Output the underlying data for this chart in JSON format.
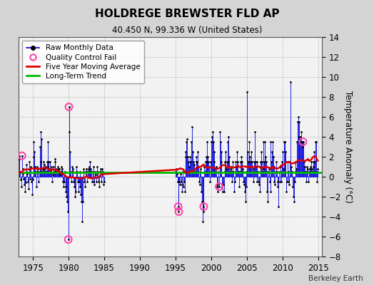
{
  "title": "HOLDREGE BREWSTER FLD AP",
  "subtitle": "40.450 N, 99.336 W (United States)",
  "ylabel": "Temperature Anomaly (°C)",
  "credit": "Berkeley Earth",
  "xlim": [
    1973,
    2015.5
  ],
  "ylim": [
    -8,
    14
  ],
  "yticks": [
    -8,
    -6,
    -4,
    -2,
    0,
    2,
    4,
    6,
    8,
    10,
    12,
    14
  ],
  "xticks": [
    1975,
    1980,
    1985,
    1990,
    1995,
    2000,
    2005,
    2010,
    2015
  ],
  "fig_bg": "#d4d4d4",
  "plot_bg": "#f2f2f2",
  "line_color": "#0000dd",
  "dot_color": "#000000",
  "ma_color": "#dd0000",
  "trend_color": "#00bb00",
  "qc_color": "#ff44aa",
  "long_term_trend_value": 0.45,
  "raw_data": [
    [
      1973.042,
      2.1
    ],
    [
      1973.125,
      1.8
    ],
    [
      1973.208,
      0.5
    ],
    [
      1973.292,
      -0.3
    ],
    [
      1973.375,
      -1.0
    ],
    [
      1973.458,
      2.1
    ],
    [
      1973.542,
      0.8
    ],
    [
      1973.625,
      0.3
    ],
    [
      1973.708,
      -0.2
    ],
    [
      1973.792,
      -0.8
    ],
    [
      1973.875,
      -1.5
    ],
    [
      1973.958,
      -0.6
    ],
    [
      1974.042,
      0.5
    ],
    [
      1974.125,
      1.2
    ],
    [
      1974.208,
      0.3
    ],
    [
      1974.292,
      -0.5
    ],
    [
      1974.375,
      -1.2
    ],
    [
      1974.458,
      1.5
    ],
    [
      1974.542,
      0.8
    ],
    [
      1974.625,
      -0.2
    ],
    [
      1974.708,
      1.0
    ],
    [
      1974.792,
      -0.5
    ],
    [
      1974.875,
      -1.8
    ],
    [
      1974.958,
      -0.3
    ],
    [
      1975.042,
      2.0
    ],
    [
      1975.125,
      3.5
    ],
    [
      1975.208,
      2.5
    ],
    [
      1975.292,
      1.0
    ],
    [
      1975.375,
      0.5
    ],
    [
      1975.458,
      -1.0
    ],
    [
      1975.542,
      0.5
    ],
    [
      1975.625,
      1.0
    ],
    [
      1975.708,
      0.8
    ],
    [
      1975.792,
      -0.5
    ],
    [
      1975.875,
      0.5
    ],
    [
      1975.958,
      3.0
    ],
    [
      1976.042,
      1.5
    ],
    [
      1976.125,
      4.5
    ],
    [
      1976.208,
      3.8
    ],
    [
      1976.292,
      0.5
    ],
    [
      1976.375,
      0.8
    ],
    [
      1976.458,
      1.5
    ],
    [
      1976.542,
      1.2
    ],
    [
      1976.625,
      0.8
    ],
    [
      1976.708,
      0.5
    ],
    [
      1976.792,
      1.0
    ],
    [
      1976.875,
      0.5
    ],
    [
      1976.958,
      1.5
    ],
    [
      1977.042,
      1.0
    ],
    [
      1977.125,
      3.5
    ],
    [
      1977.208,
      1.5
    ],
    [
      1977.292,
      0.8
    ],
    [
      1977.375,
      1.5
    ],
    [
      1977.458,
      0.5
    ],
    [
      1977.542,
      1.0
    ],
    [
      1977.625,
      0.8
    ],
    [
      1977.708,
      -0.5
    ],
    [
      1977.792,
      0.2
    ],
    [
      1977.875,
      1.0
    ],
    [
      1977.958,
      0.5
    ],
    [
      1978.042,
      1.8
    ],
    [
      1978.125,
      1.5
    ],
    [
      1978.208,
      0.5
    ],
    [
      1978.292,
      0.8
    ],
    [
      1978.375,
      0.5
    ],
    [
      1978.458,
      1.0
    ],
    [
      1978.542,
      0.8
    ],
    [
      1978.625,
      0.5
    ],
    [
      1978.708,
      0.8
    ],
    [
      1978.792,
      0.2
    ],
    [
      1978.875,
      0.5
    ],
    [
      1978.958,
      1.0
    ],
    [
      1979.042,
      0.5
    ],
    [
      1979.125,
      0.8
    ],
    [
      1979.208,
      -0.5
    ],
    [
      1979.292,
      -1.0
    ],
    [
      1979.375,
      -0.5
    ],
    [
      1979.458,
      0.5
    ],
    [
      1979.542,
      -1.0
    ],
    [
      1979.625,
      -1.5
    ],
    [
      1979.708,
      -2.0
    ],
    [
      1979.792,
      -2.5
    ],
    [
      1979.875,
      -3.5
    ],
    [
      1979.958,
      -6.3
    ],
    [
      1980.042,
      7.0
    ],
    [
      1980.125,
      4.5
    ],
    [
      1980.208,
      2.5
    ],
    [
      1980.292,
      0.5
    ],
    [
      1980.375,
      -0.5
    ],
    [
      1980.458,
      1.0
    ],
    [
      1980.542,
      0.5
    ],
    [
      1980.625,
      0.8
    ],
    [
      1980.708,
      -0.5
    ],
    [
      1980.792,
      -1.0
    ],
    [
      1980.875,
      -2.0
    ],
    [
      1980.958,
      -1.5
    ],
    [
      1981.042,
      0.5
    ],
    [
      1981.125,
      1.0
    ],
    [
      1981.208,
      0.5
    ],
    [
      1981.292,
      -0.5
    ],
    [
      1981.375,
      -1.5
    ],
    [
      1981.458,
      -0.5
    ],
    [
      1981.542,
      0.5
    ],
    [
      1981.625,
      -1.0
    ],
    [
      1981.708,
      -1.8
    ],
    [
      1981.792,
      -2.5
    ],
    [
      1981.875,
      -4.5
    ],
    [
      1981.958,
      -2.5
    ],
    [
      1982.042,
      0.5
    ],
    [
      1982.125,
      0.8
    ],
    [
      1982.208,
      -0.5
    ],
    [
      1982.292,
      -1.0
    ],
    [
      1982.375,
      0.5
    ],
    [
      1982.458,
      0.8
    ],
    [
      1982.542,
      0.5
    ],
    [
      1982.625,
      -0.5
    ],
    [
      1982.708,
      0.5
    ],
    [
      1982.792,
      0.8
    ],
    [
      1982.875,
      1.0
    ],
    [
      1982.958,
      0.5
    ],
    [
      1983.042,
      1.5
    ],
    [
      1983.125,
      0.8
    ],
    [
      1983.208,
      0.5
    ],
    [
      1983.292,
      -0.5
    ],
    [
      1983.375,
      0.5
    ],
    [
      1983.458,
      1.0
    ],
    [
      1983.542,
      -0.5
    ],
    [
      1983.625,
      -0.8
    ],
    [
      1983.708,
      0.5
    ],
    [
      1983.792,
      0.2
    ],
    [
      1983.875,
      -0.5
    ],
    [
      1983.958,
      0.5
    ],
    [
      1984.042,
      1.0
    ],
    [
      1984.125,
      0.5
    ],
    [
      1984.208,
      -0.5
    ],
    [
      1984.292,
      -1.0
    ],
    [
      1984.375,
      0.5
    ],
    [
      1984.458,
      0.8
    ],
    [
      1984.542,
      0.5
    ],
    [
      1984.625,
      -0.5
    ],
    [
      1984.708,
      0.8
    ],
    [
      1984.792,
      0.5
    ],
    [
      1984.875,
      -0.8
    ],
    [
      1984.958,
      -0.5
    ],
    [
      1995.042,
      0.5
    ],
    [
      1995.125,
      0.8
    ],
    [
      1995.208,
      0.3
    ],
    [
      1995.292,
      -0.5
    ],
    [
      1995.375,
      -3.0
    ],
    [
      1995.458,
      -3.5
    ],
    [
      1995.542,
      -0.5
    ],
    [
      1995.625,
      -0.8
    ],
    [
      1995.708,
      0.3
    ],
    [
      1995.792,
      -0.5
    ],
    [
      1995.875,
      -0.8
    ],
    [
      1995.958,
      -1.5
    ],
    [
      1996.042,
      0.5
    ],
    [
      1996.125,
      -1.0
    ],
    [
      1996.208,
      -0.5
    ],
    [
      1996.292,
      -1.5
    ],
    [
      1996.375,
      2.5
    ],
    [
      1996.458,
      2.0
    ],
    [
      1996.542,
      3.5
    ],
    [
      1996.625,
      3.8
    ],
    [
      1996.708,
      2.0
    ],
    [
      1996.792,
      1.5
    ],
    [
      1996.875,
      1.0
    ],
    [
      1996.958,
      0.5
    ],
    [
      1997.042,
      2.0
    ],
    [
      1997.125,
      1.5
    ],
    [
      1997.208,
      3.5
    ],
    [
      1997.292,
      5.0
    ],
    [
      1997.375,
      2.5
    ],
    [
      1997.458,
      0.5
    ],
    [
      1997.542,
      1.5
    ],
    [
      1997.625,
      1.2
    ],
    [
      1997.708,
      0.8
    ],
    [
      1997.792,
      0.5
    ],
    [
      1997.875,
      1.5
    ],
    [
      1997.958,
      2.0
    ],
    [
      1998.042,
      1.5
    ],
    [
      1998.125,
      2.5
    ],
    [
      1998.208,
      1.0
    ],
    [
      1998.292,
      -0.5
    ],
    [
      1998.375,
      -0.8
    ],
    [
      1998.458,
      0.5
    ],
    [
      1998.542,
      0.8
    ],
    [
      1998.625,
      -1.5
    ],
    [
      1998.708,
      -2.5
    ],
    [
      1998.792,
      -4.5
    ],
    [
      1998.875,
      -3.5
    ],
    [
      1998.958,
      -3.0
    ],
    [
      1999.042,
      1.0
    ],
    [
      1999.125,
      0.5
    ],
    [
      1999.208,
      1.5
    ],
    [
      1999.292,
      2.0
    ],
    [
      1999.375,
      1.5
    ],
    [
      1999.458,
      3.5
    ],
    [
      1999.542,
      2.0
    ],
    [
      1999.625,
      1.5
    ],
    [
      1999.708,
      1.0
    ],
    [
      1999.792,
      -0.5
    ],
    [
      1999.875,
      0.5
    ],
    [
      1999.958,
      1.5
    ],
    [
      2000.042,
      3.5
    ],
    [
      2000.125,
      4.0
    ],
    [
      2000.208,
      4.5
    ],
    [
      2000.292,
      3.5
    ],
    [
      2000.375,
      2.5
    ],
    [
      2000.458,
      1.5
    ],
    [
      2000.542,
      0.8
    ],
    [
      2000.625,
      0.5
    ],
    [
      2000.708,
      1.0
    ],
    [
      2000.792,
      -1.0
    ],
    [
      2000.875,
      -0.8
    ],
    [
      2000.958,
      -1.5
    ],
    [
      2001.042,
      0.5
    ],
    [
      2001.125,
      -1.0
    ],
    [
      2001.208,
      4.5
    ],
    [
      2001.292,
      3.5
    ],
    [
      2001.375,
      2.5
    ],
    [
      2001.458,
      1.5
    ],
    [
      2001.542,
      -1.0
    ],
    [
      2001.625,
      -1.5
    ],
    [
      2001.708,
      -0.8
    ],
    [
      2001.792,
      -1.5
    ],
    [
      2001.875,
      0.5
    ],
    [
      2001.958,
      1.5
    ],
    [
      2002.042,
      2.5
    ],
    [
      2002.125,
      0.8
    ],
    [
      2002.208,
      1.5
    ],
    [
      2002.292,
      3.5
    ],
    [
      2002.375,
      4.0
    ],
    [
      2002.458,
      1.5
    ],
    [
      2002.542,
      2.0
    ],
    [
      2002.625,
      0.5
    ],
    [
      2002.708,
      0.8
    ],
    [
      2002.792,
      1.0
    ],
    [
      2002.875,
      -0.5
    ],
    [
      2002.958,
      0.5
    ],
    [
      2003.042,
      1.5
    ],
    [
      2003.125,
      0.5
    ],
    [
      2003.208,
      -1.5
    ],
    [
      2003.292,
      -0.5
    ],
    [
      2003.375,
      1.0
    ],
    [
      2003.458,
      1.5
    ],
    [
      2003.542,
      1.0
    ],
    [
      2003.625,
      2.5
    ],
    [
      2003.708,
      1.5
    ],
    [
      2003.792,
      0.5
    ],
    [
      2003.875,
      -1.0
    ],
    [
      2003.958,
      0.5
    ],
    [
      2004.042,
      0.5
    ],
    [
      2004.125,
      1.5
    ],
    [
      2004.208,
      2.0
    ],
    [
      2004.292,
      1.5
    ],
    [
      2004.375,
      0.5
    ],
    [
      2004.458,
      0.8
    ],
    [
      2004.542,
      -0.5
    ],
    [
      2004.625,
      -0.8
    ],
    [
      2004.708,
      -1.5
    ],
    [
      2004.792,
      -2.5
    ],
    [
      2004.875,
      -1.0
    ],
    [
      2004.958,
      0.5
    ],
    [
      2005.042,
      8.5
    ],
    [
      2005.125,
      2.5
    ],
    [
      2005.208,
      1.5
    ],
    [
      2005.292,
      3.5
    ],
    [
      2005.375,
      2.0
    ],
    [
      2005.458,
      1.0
    ],
    [
      2005.542,
      1.5
    ],
    [
      2005.625,
      2.5
    ],
    [
      2005.708,
      1.5
    ],
    [
      2005.792,
      0.5
    ],
    [
      2005.875,
      -0.5
    ],
    [
      2005.958,
      0.8
    ],
    [
      2006.042,
      1.5
    ],
    [
      2006.125,
      4.5
    ],
    [
      2006.208,
      1.5
    ],
    [
      2006.292,
      1.0
    ],
    [
      2006.375,
      1.5
    ],
    [
      2006.458,
      -0.5
    ],
    [
      2006.542,
      0.5
    ],
    [
      2006.625,
      -0.5
    ],
    [
      2006.708,
      -0.8
    ],
    [
      2006.792,
      -1.5
    ],
    [
      2006.875,
      0.5
    ],
    [
      2006.958,
      1.5
    ],
    [
      2007.042,
      2.5
    ],
    [
      2007.125,
      1.5
    ],
    [
      2007.208,
      0.5
    ],
    [
      2007.292,
      0.8
    ],
    [
      2007.375,
      3.5
    ],
    [
      2007.458,
      1.5
    ],
    [
      2007.542,
      3.5
    ],
    [
      2007.625,
      2.0
    ],
    [
      2007.708,
      1.5
    ],
    [
      2007.792,
      0.5
    ],
    [
      2007.875,
      -1.5
    ],
    [
      2007.958,
      -2.5
    ],
    [
      2008.042,
      0.5
    ],
    [
      2008.125,
      0.8
    ],
    [
      2008.208,
      -0.5
    ],
    [
      2008.292,
      -1.5
    ],
    [
      2008.375,
      3.5
    ],
    [
      2008.458,
      1.5
    ],
    [
      2008.542,
      2.5
    ],
    [
      2008.625,
      3.5
    ],
    [
      2008.708,
      2.0
    ],
    [
      2008.792,
      1.0
    ],
    [
      2008.875,
      -0.5
    ],
    [
      2008.958,
      -0.8
    ],
    [
      2009.042,
      0.5
    ],
    [
      2009.125,
      1.5
    ],
    [
      2009.208,
      0.5
    ],
    [
      2009.292,
      -1.0
    ],
    [
      2009.375,
      -0.5
    ],
    [
      2009.458,
      -3.0
    ],
    [
      2009.542,
      0.5
    ],
    [
      2009.625,
      -0.5
    ],
    [
      2009.708,
      1.0
    ],
    [
      2009.792,
      -0.5
    ],
    [
      2009.875,
      0.5
    ],
    [
      2009.958,
      1.5
    ],
    [
      2010.042,
      2.5
    ],
    [
      2010.125,
      0.8
    ],
    [
      2010.208,
      3.5
    ],
    [
      2010.292,
      3.5
    ],
    [
      2010.375,
      3.5
    ],
    [
      2010.458,
      2.5
    ],
    [
      2010.542,
      -1.5
    ],
    [
      2010.625,
      -0.5
    ],
    [
      2010.708,
      1.5
    ],
    [
      2010.792,
      0.5
    ],
    [
      2010.875,
      -0.5
    ],
    [
      2010.958,
      -0.8
    ],
    [
      2011.042,
      1.5
    ],
    [
      2011.125,
      9.5
    ],
    [
      2011.208,
      1.0
    ],
    [
      2011.292,
      0.5
    ],
    [
      2011.375,
      0.5
    ],
    [
      2011.458,
      -1.0
    ],
    [
      2011.542,
      -2.0
    ],
    [
      2011.625,
      -2.5
    ],
    [
      2011.708,
      -0.5
    ],
    [
      2011.792,
      0.5
    ],
    [
      2011.875,
      1.5
    ],
    [
      2011.958,
      0.8
    ],
    [
      2012.042,
      3.5
    ],
    [
      2012.125,
      5.5
    ],
    [
      2012.208,
      6.0
    ],
    [
      2012.292,
      5.5
    ],
    [
      2012.375,
      4.0
    ],
    [
      2012.458,
      3.5
    ],
    [
      2012.542,
      4.0
    ],
    [
      2012.625,
      4.5
    ],
    [
      2012.708,
      3.5
    ],
    [
      2012.792,
      3.0
    ],
    [
      2012.875,
      3.5
    ],
    [
      2012.958,
      3.5
    ],
    [
      2013.042,
      1.5
    ],
    [
      2013.125,
      1.0
    ],
    [
      2013.208,
      0.5
    ],
    [
      2013.292,
      -0.5
    ],
    [
      2013.375,
      0.5
    ],
    [
      2013.458,
      1.0
    ],
    [
      2013.542,
      0.8
    ],
    [
      2013.625,
      -0.5
    ],
    [
      2013.708,
      0.5
    ],
    [
      2013.792,
      0.8
    ],
    [
      2013.875,
      0.5
    ],
    [
      2013.958,
      1.0
    ],
    [
      2014.042,
      1.5
    ],
    [
      2014.125,
      0.8
    ],
    [
      2014.208,
      0.5
    ],
    [
      2014.292,
      1.0
    ],
    [
      2014.375,
      1.5
    ],
    [
      2014.458,
      2.5
    ],
    [
      2014.542,
      1.5
    ],
    [
      2014.625,
      3.5
    ],
    [
      2014.708,
      3.5
    ],
    [
      2014.792,
      0.5
    ],
    [
      2014.875,
      -0.5
    ],
    [
      2014.958,
      0.8
    ]
  ],
  "qc_fail_points": [
    [
      1973.458,
      2.1
    ],
    [
      1979.958,
      -6.3
    ],
    [
      1980.042,
      7.0
    ],
    [
      1995.375,
      -3.0
    ],
    [
      1995.458,
      -3.5
    ],
    [
      1998.958,
      -3.0
    ],
    [
      2001.125,
      -1.0
    ],
    [
      2012.875,
      3.5
    ]
  ]
}
